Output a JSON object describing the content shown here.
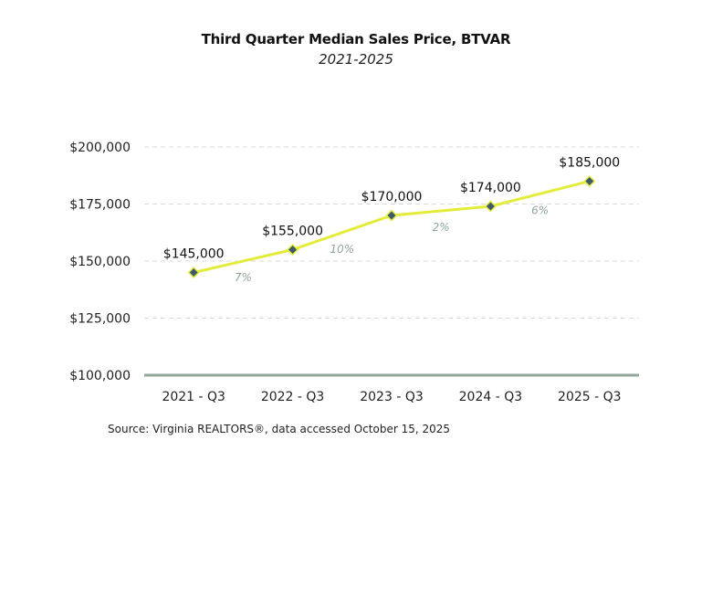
{
  "chart_data": {
    "type": "line",
    "title": "Third Quarter Median Sales Price, BTVAR",
    "subtitle": "2021-2025",
    "xlabel": "",
    "ylabel": "",
    "categories": [
      "2021 - Q3",
      "2022 - Q3",
      "2023 - Q3",
      "2024 - Q3",
      "2025 - Q3"
    ],
    "series": [
      {
        "name": "Median Sales Price",
        "values": [
          145000,
          155000,
          170000,
          174000,
          185000
        ],
        "data_labels": [
          "$145,000",
          "$155,000",
          "$170,000",
          "$174,000",
          "$185,000"
        ],
        "color": "#e4ec3a",
        "marker_color": "#3f5a6b"
      }
    ],
    "pct_change_labels": [
      "7%",
      "10%",
      "2%",
      "6%"
    ],
    "ylim": [
      100000,
      200000
    ],
    "yticks": [
      200000,
      175000,
      150000,
      125000,
      100000
    ],
    "ytick_labels": [
      "$200,000",
      "$175,000",
      "$150,000",
      "$125,000",
      "$100,000"
    ],
    "grid": true,
    "axis_color": "#8fa89a",
    "grid_color": "#d9d9d9",
    "pct_color": "#8fa89a"
  },
  "source": "Source: Virginia REALTORS®, data accessed October 15, 2025"
}
